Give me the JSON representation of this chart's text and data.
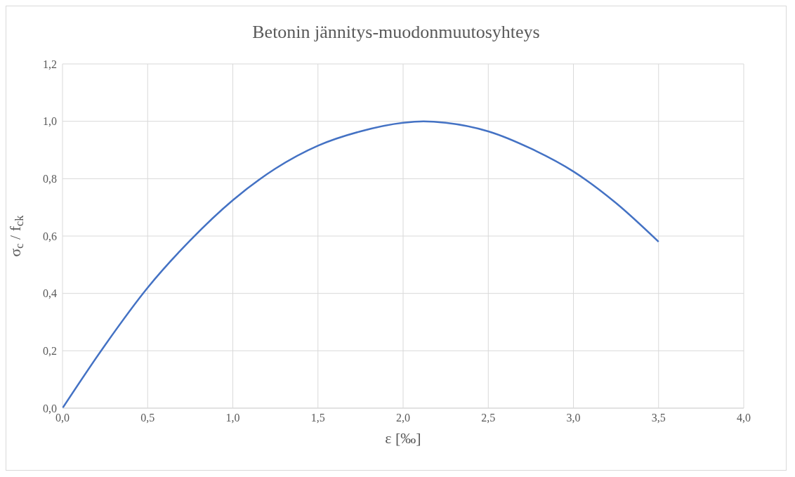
{
  "chart_data": {
    "type": "line",
    "title": "Betonin jännitys-muodonmuutosyhteys",
    "xlabel": "ε [‰]",
    "ylabel": "σ$_{c}$ / f$_{ck}$",
    "x": [
      0,
      0.25,
      0.5,
      0.75,
      1.0,
      1.25,
      1.5,
      1.75,
      2.0,
      2.12,
      2.25,
      2.5,
      2.75,
      3.0,
      3.25,
      3.5
    ],
    "series": [
      {
        "color": "#4472c4",
        "values": [
          0,
          0.22,
          0.42,
          0.585,
          0.725,
          0.835,
          0.915,
          0.965,
          0.995,
          1.0,
          0.995,
          0.965,
          0.905,
          0.825,
          0.715,
          0.58
        ]
      }
    ],
    "xlim": [
      0,
      4
    ],
    "ylim": [
      0,
      1.2
    ],
    "xticks": [
      {
        "value": 0,
        "label": "0,0"
      },
      {
        "value": 0.5,
        "label": "0,5"
      },
      {
        "value": 1,
        "label": "1,0"
      },
      {
        "value": 1.5,
        "label": "1,5"
      },
      {
        "value": 2,
        "label": "2,0"
      },
      {
        "value": 2.5,
        "label": "2,5"
      },
      {
        "value": 3,
        "label": "3,0"
      },
      {
        "value": 3.5,
        "label": "3,5"
      },
      {
        "value": 4,
        "label": "4,0"
      }
    ],
    "yticks": [
      {
        "value": 0,
        "label": "0,0"
      },
      {
        "value": 0.2,
        "label": "0,2"
      },
      {
        "value": 0.4,
        "label": "0,4"
      },
      {
        "value": 0.6,
        "label": "0,6"
      },
      {
        "value": 0.8,
        "label": "0,8"
      },
      {
        "value": 1,
        "label": "1,0"
      },
      {
        "value": 1.2,
        "label": "1,2"
      }
    ],
    "grid": true,
    "marker": "none",
    "line_style": "solid"
  }
}
